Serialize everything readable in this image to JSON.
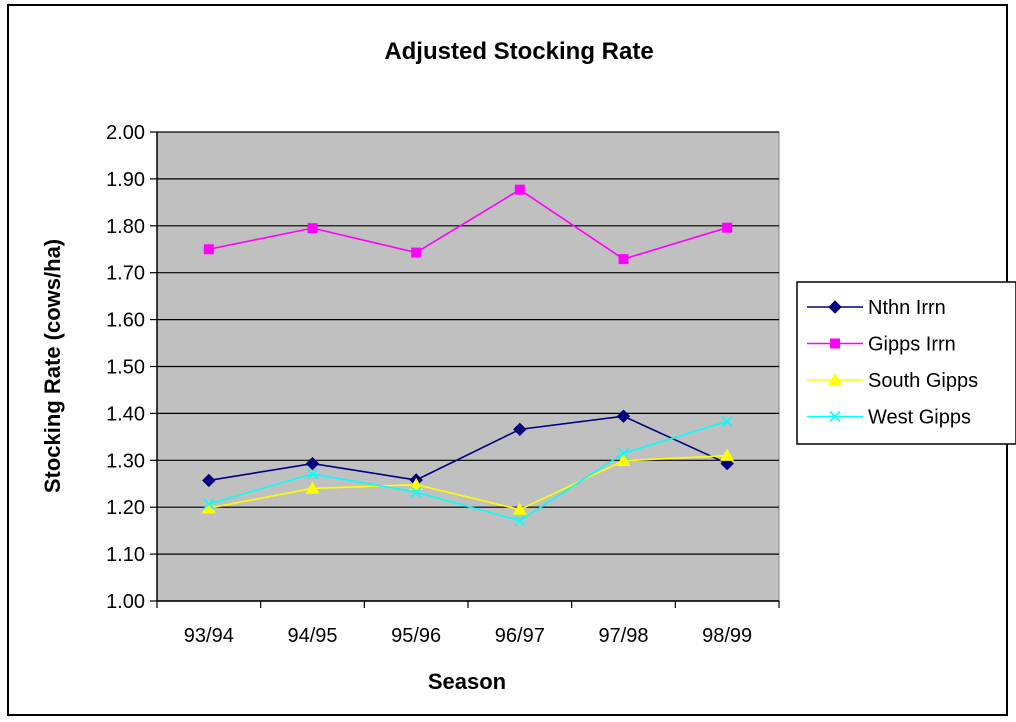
{
  "chart_data": {
    "type": "line",
    "title": "Adjusted Stocking Rate",
    "xlabel": "Season",
    "ylabel": "Stocking Rate (cows/ha)",
    "categories": [
      "93/94",
      "94/95",
      "95/96",
      "96/97",
      "97/98",
      "98/99"
    ],
    "ylim": [
      1.0,
      2.0
    ],
    "yticks": [
      "1.00",
      "1.10",
      "1.20",
      "1.30",
      "1.40",
      "1.50",
      "1.60",
      "1.70",
      "1.80",
      "1.90",
      "2.00"
    ],
    "grid": "horizontal",
    "plot_background": "#c0c0c0",
    "legend_position": "right",
    "series": [
      {
        "name": "Nthn Irrn",
        "color": "#000080",
        "marker": "diamond",
        "values": [
          1.257,
          1.293,
          1.258,
          1.366,
          1.394,
          1.293
        ]
      },
      {
        "name": "Gipps Irrn",
        "color": "#ff00ff",
        "marker": "square",
        "values": [
          1.75,
          1.795,
          1.743,
          1.877,
          1.729,
          1.796
        ]
      },
      {
        "name": "South Gipps",
        "color": "#ffff00",
        "marker": "triangle",
        "values": [
          1.198,
          1.24,
          1.248,
          1.195,
          1.299,
          1.31
        ]
      },
      {
        "name": "West Gipps",
        "color": "#00ffff",
        "marker": "x",
        "values": [
          1.207,
          1.271,
          1.232,
          1.171,
          1.315,
          1.383
        ]
      }
    ]
  }
}
